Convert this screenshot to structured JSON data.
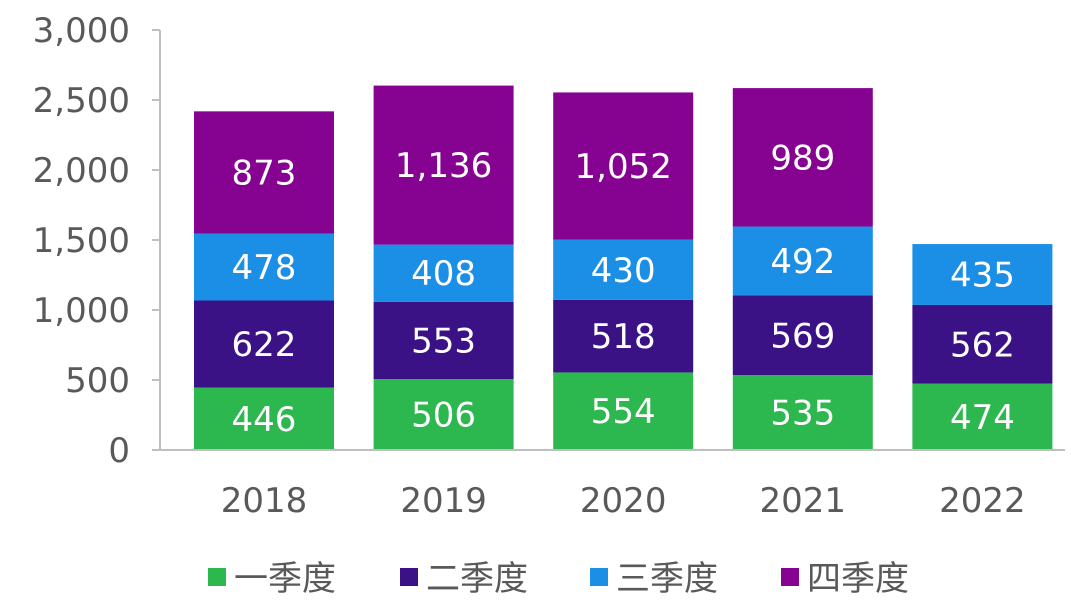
{
  "chart_data": {
    "type": "bar",
    "stacked": true,
    "categories": [
      "2018",
      "2019",
      "2020",
      "2021",
      "2022"
    ],
    "series": [
      {
        "name": "一季度",
        "color": "#2db84f",
        "values": [
          446,
          506,
          554,
          535,
          474
        ]
      },
      {
        "name": "二季度",
        "color": "#3b1186",
        "values": [
          622,
          553,
          518,
          569,
          562
        ]
      },
      {
        "name": "三季度",
        "color": "#1b8ee6",
        "values": [
          478,
          408,
          430,
          492,
          435
        ]
      },
      {
        "name": "四季度",
        "color": "#860391",
        "values": [
          873,
          1136,
          1052,
          989,
          null
        ]
      }
    ],
    "data_labels": [
      [
        "446",
        "506",
        "554",
        "535",
        "474"
      ],
      [
        "622",
        "553",
        "518",
        "569",
        "562"
      ],
      [
        "478",
        "408",
        "430",
        "492",
        "435"
      ],
      [
        "873",
        "1,136",
        "1,052",
        "989",
        null
      ]
    ],
    "yticks": [
      "0",
      "500",
      "1,000",
      "1,500",
      "2,000",
      "2,500",
      "3,000"
    ],
    "ylim": [
      0,
      3000
    ],
    "grid": false,
    "legend_position": "bottom"
  }
}
